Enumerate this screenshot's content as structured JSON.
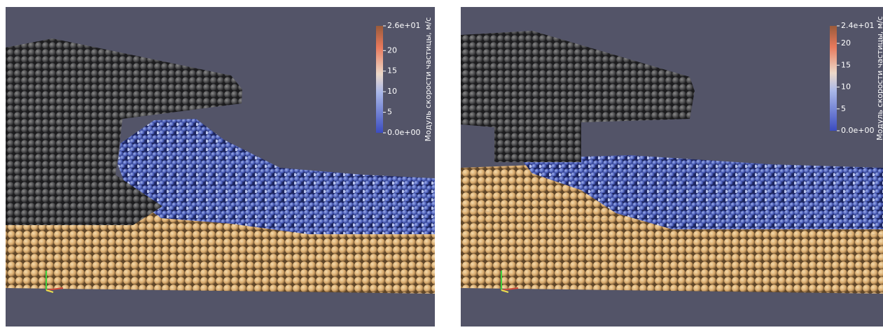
{
  "panels": [
    {
      "colorbar": {
        "title": "Модуль скорости частицы, м/с",
        "ticks": [
          {
            "value": 26,
            "label": "2.6e+01"
          },
          20,
          15,
          10,
          5,
          {
            "value": 0,
            "label": "0.0e+00"
          }
        ]
      }
    },
    {
      "colorbar": {
        "title": "Модуль скорости частицы, м/с",
        "ticks": [
          {
            "value": 24,
            "label": "2.4e+01"
          },
          20,
          15,
          10,
          5,
          {
            "value": 0,
            "label": "0.0e+00"
          }
        ]
      }
    }
  ]
}
